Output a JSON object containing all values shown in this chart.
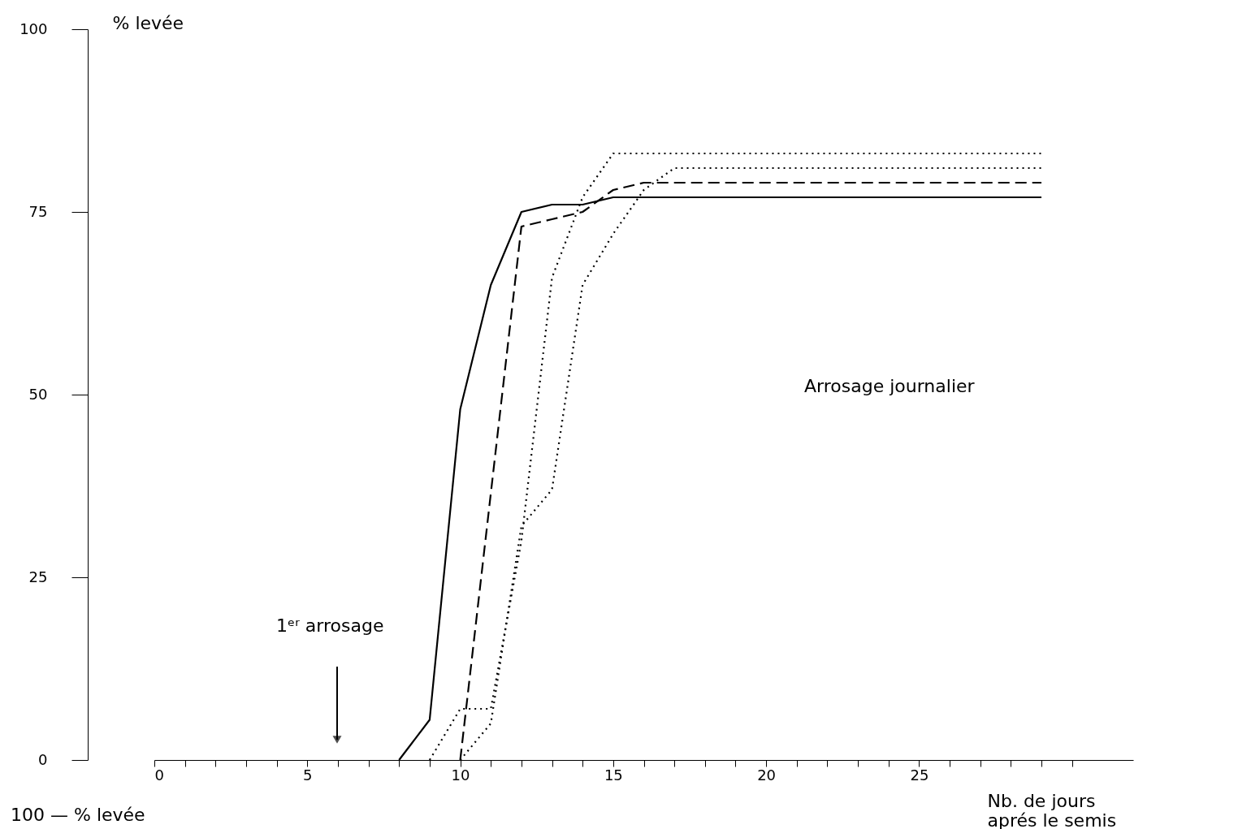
{
  "chart_data": {
    "type": "line",
    "xlabel": "Nb. de jours\naprés le semis",
    "ylabel": "% levée",
    "xlim": [
      0,
      32
    ],
    "ylim": [
      0,
      100
    ],
    "xticks": [
      0,
      {
        "value": 1,
        "label": null
      },
      {
        "value": 2,
        "label": null
      },
      {
        "value": 3,
        "label": null
      },
      {
        "value": 4,
        "label": null
      },
      5,
      {
        "value": 6,
        "label": null
      },
      {
        "value": 7,
        "label": null
      },
      {
        "value": 8,
        "label": null
      },
      {
        "value": 9,
        "label": null
      },
      10,
      {
        "value": 11,
        "label": null
      },
      {
        "value": 12,
        "label": null
      },
      {
        "value": 13,
        "label": null
      },
      {
        "value": 14,
        "label": null
      },
      15,
      {
        "value": 16,
        "label": null
      },
      {
        "value": 17,
        "label": null
      },
      {
        "value": 18,
        "label": null
      },
      {
        "value": 19,
        "label": null
      },
      20,
      {
        "value": 21,
        "label": null
      },
      {
        "value": 22,
        "label": null
      },
      {
        "value": 23,
        "label": null
      },
      {
        "value": 24,
        "label": null
      },
      25,
      {
        "value": 26,
        "label": null
      },
      {
        "value": 27,
        "label": null
      },
      {
        "value": 28,
        "label": null
      },
      {
        "value": 29,
        "label": null
      },
      {
        "value": 30,
        "label": null
      }
    ],
    "yticks": [
      0,
      25,
      50,
      75,
      100
    ],
    "grid": false,
    "series": [
      {
        "color": "#000000",
        "line_style": "solid",
        "x": [
          8,
          9,
          10,
          11,
          12,
          13,
          14,
          15,
          29
        ],
        "values": [
          0,
          5.5,
          48,
          65,
          75,
          76,
          76,
          77,
          77
        ]
      },
      {
        "color": "#000000",
        "line_style": "dashed",
        "x": [
          10,
          12,
          13,
          14,
          15,
          16,
          29
        ],
        "values": [
          0,
          73,
          74,
          75,
          78,
          79,
          79
        ]
      },
      {
        "color": "#000000",
        "line_style": "dotted",
        "x": [
          9,
          10,
          11,
          12,
          13,
          14,
          15,
          29
        ],
        "values": [
          0,
          7,
          7,
          30,
          66,
          77,
          83,
          83
        ]
      },
      {
        "color": "#000000",
        "line_style": "dotted",
        "x": [
          10,
          11,
          12,
          13,
          14,
          15,
          16,
          17,
          29
        ],
        "values": [
          0,
          5,
          32,
          37,
          65,
          72,
          78,
          81,
          81
        ]
      }
    ],
    "annotations": [
      "1ᵉʳ arrosage",
      "Arrosage journalier",
      "100 — % levée"
    ]
  }
}
